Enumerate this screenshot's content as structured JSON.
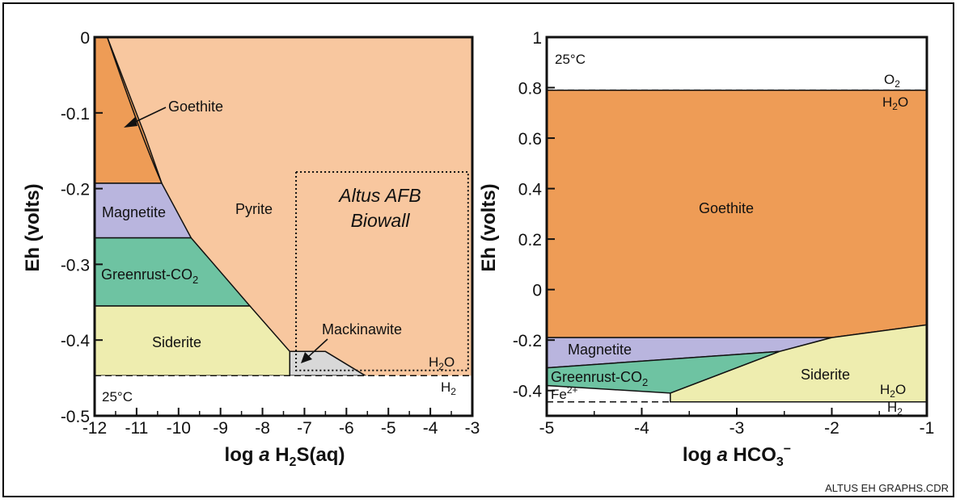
{
  "footer": "ALTUS EH GRAPHS.CDR",
  "colors": {
    "goethite": "#EE9C56",
    "pyrite": "#F8C79F",
    "magnetite": "#B9B5DE",
    "greenrust": "#6EC3A2",
    "siderite": "#EEEDAF",
    "mackinawite": "#D8D8D8"
  },
  "chart_data": [
    {
      "type": "area",
      "title": "",
      "xlabel_pre": "log ",
      "xlabel_italic": "a",
      "xlabel_main": " H",
      "xlabel_sub": "2",
      "xlabel_post": "S(aq)",
      "ylabel": "Eh (volts)",
      "xlim": [
        -12,
        -3
      ],
      "ylim": [
        -0.5,
        0
      ],
      "x_ticks": [
        "-12",
        "-11",
        "-10",
        "-9",
        "-8",
        "-7",
        "-6",
        "-5",
        "-4",
        "-3"
      ],
      "y_ticks": [
        "0",
        "-0.1",
        "-0.2",
        "-0.3",
        "-0.4",
        "-0.5"
      ],
      "temperature": "25°C",
      "water_label_top": "H",
      "water_label_top_sub": "2",
      "water_label_top_post": "O",
      "water_label_bottom": "H",
      "water_label_bottom_sub": "2",
      "water_line_eh": -0.447,
      "fields": [
        {
          "name": "Goethite",
          "x": [
            -12,
            -11.7,
            -10.8,
            -10.4,
            -12
          ],
          "y": [
            0,
            0,
            -0.13,
            -0.193,
            -0.193
          ]
        },
        {
          "name": "Magnetite",
          "x": [
            -12,
            -10.4,
            -9.7,
            -12
          ],
          "y": [
            -0.193,
            -0.193,
            -0.265,
            -0.265
          ]
        },
        {
          "name": "Greenrust-CO2",
          "x": [
            -12,
            -9.7,
            -8.3,
            -12
          ],
          "y": [
            -0.265,
            -0.265,
            -0.355,
            -0.355
          ]
        },
        {
          "name": "Siderite",
          "x": [
            -12,
            -8.3,
            -7.35,
            -7.35,
            -12
          ],
          "y": [
            -0.355,
            -0.355,
            -0.415,
            -0.447,
            -0.447
          ]
        },
        {
          "name": "Mackinawite",
          "x": [
            -7.35,
            -6.5,
            -5.55,
            -7.35
          ],
          "y": [
            -0.415,
            -0.415,
            -0.447,
            -0.447
          ]
        }
      ],
      "pyrite_label": "Pyrite",
      "goethite_label": "Goethite",
      "magnetite_label": "Magnetite",
      "greenrust_label_main": "Greenrust-CO",
      "greenrust_label_sub": "2",
      "siderite_label": "Siderite",
      "mackinawite_label": "Mackinawite",
      "biowall_line1": "Altus AFB",
      "biowall_line2": "Biowall",
      "biowall_box": {
        "x": [
          -7.2,
          -3.1
        ],
        "y": [
          -0.178,
          -0.44
        ]
      }
    },
    {
      "type": "area",
      "title": "",
      "xlabel_pre": "log ",
      "xlabel_italic": "a",
      "xlabel_main": " HCO",
      "xlabel_sub": "3",
      "xlabel_sup": "−",
      "ylabel": "Eh (volts)",
      "xlim": [
        -5,
        -1
      ],
      "ylim": [
        -0.5,
        1
      ],
      "x_ticks": [
        "-5",
        "-4",
        "-3",
        "-2",
        "-1"
      ],
      "y_ticks": [
        "1",
        "0.8",
        "0.6",
        "0.4",
        "0.2",
        "0",
        "-0.2",
        "-0.4"
      ],
      "temperature": "25°C",
      "o2_label": "O",
      "o2_sub": "2",
      "water_label_top": "H",
      "water_label_top_sub": "2",
      "water_label_top_post": "O",
      "water_label_bottom": "H",
      "water_label_bottom_sub": "2",
      "fe_label": "Fe",
      "fe_sup": "2+",
      "o2_line_eh": 0.79,
      "h2_line_eh": -0.445,
      "fields": [
        {
          "name": "Goethite",
          "x": [
            -5,
            -1,
            -1,
            -2.0,
            -5
          ],
          "y": [
            0.79,
            0.79,
            -0.14,
            -0.19,
            -0.19
          ]
        },
        {
          "name": "Magnetite",
          "x": [
            -5,
            -2.0,
            -2.55,
            -5
          ],
          "y": [
            -0.19,
            -0.19,
            -0.245,
            -0.31
          ]
        },
        {
          "name": "Greenrust-CO2",
          "x": [
            -5,
            -2.55,
            -3.7,
            -5
          ],
          "y": [
            -0.31,
            -0.245,
            -0.41,
            -0.38
          ]
        },
        {
          "name": "Siderite",
          "x": [
            -3.7,
            -2.55,
            -2.0,
            -1,
            -1,
            -3.7
          ],
          "y": [
            -0.41,
            -0.245,
            -0.19,
            -0.14,
            -0.445,
            -0.445
          ]
        }
      ],
      "goethite_label": "Goethite",
      "magnetite_label": "Magnetite",
      "greenrust_label_main": "Greenrust-CO",
      "greenrust_label_sub": "2",
      "siderite_label": "Siderite"
    }
  ]
}
